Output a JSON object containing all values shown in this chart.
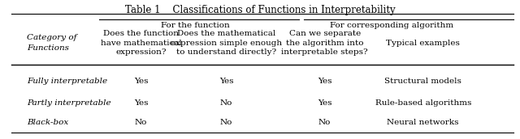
{
  "title": "Table 1    Classifications of Functions in Interpretability",
  "col_header_group1": "For the function",
  "col_header_group2": "For corresponding algorithm",
  "col_headers": [
    "Does the function\nhave mathematical\nexpression?",
    "Does the mathematical\nexpression simple enough\nto understand directly?",
    "Can we separate\nthe algorithm into\ninterpretable steps?",
    "Typical examples"
  ],
  "row_label_header": "Category of\nFunctions",
  "rows": [
    {
      "label": "Fully interpretable",
      "values": [
        "Yes",
        "Yes",
        "Yes",
        "Structural models"
      ]
    },
    {
      "label": "Partly interpretable",
      "values": [
        "Yes",
        "No",
        "Yes",
        "Rule-based algorithms"
      ]
    },
    {
      "label": "Black-box",
      "values": [
        "No",
        "No",
        "No",
        "Neural networks"
      ]
    }
  ],
  "background_color": "#ffffff",
  "text_color": "#000000",
  "font_size": 7.5,
  "title_font_size": 8.5
}
